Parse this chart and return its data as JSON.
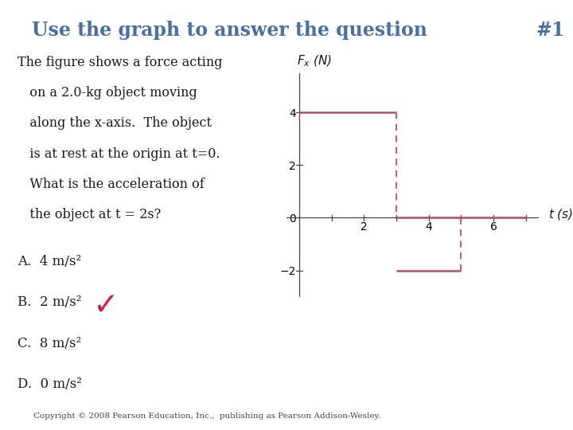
{
  "title": "Use the graph to answer the question",
  "title_num": "#1",
  "title_color": "#4a6fa5",
  "background_color": "#ffffff",
  "question_lines": [
    "The figure shows a force acting",
    "   on a 2.0-kg object moving",
    "   along the x-axis.  The object",
    "   is at rest at the origin at t=0.",
    "   What is the acceleration of",
    "   the object at t = 2s?"
  ],
  "answers": [
    "A.  4 m/s²",
    "B.  2 m/s²",
    "C.  8 m/s²",
    "D.  0 m/s²"
  ],
  "correct_answer_index": 1,
  "copyright": "Copyright © 2008 Pearson Education, Inc.,  publishing as Pearson Addison-Wesley.",
  "line_color": "#b05070",
  "dashed_color": "#c06080",
  "graph_xlim": [
    -0.4,
    7.4
  ],
  "graph_ylim": [
    -3.0,
    5.5
  ],
  "xticks": [
    1,
    2,
    3,
    4,
    5,
    6,
    7
  ],
  "xtick_labels": [
    "",
    "2",
    "",
    "4",
    "",
    "6",
    ""
  ],
  "yticks": [
    -2,
    0,
    2,
    4
  ],
  "ytick_labels": [
    "−2",
    "0",
    "2",
    "4"
  ],
  "axis_color": "#444444"
}
